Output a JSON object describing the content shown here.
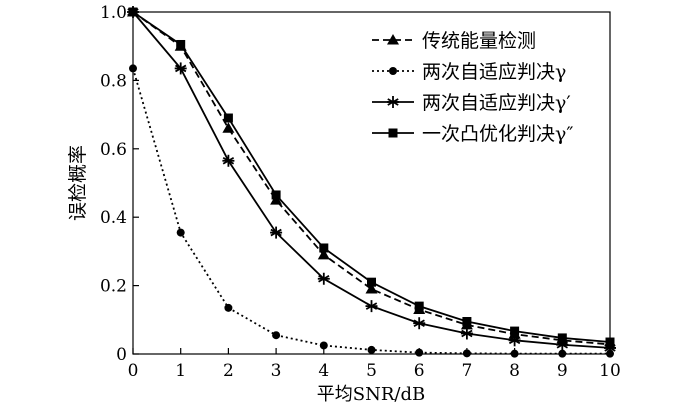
{
  "chart_data": {
    "type": "line",
    "xlabel": "平均SNR/dB",
    "ylabel": "误检概率",
    "xlim": [
      0,
      10
    ],
    "ylim": [
      0,
      1
    ],
    "xticks": [
      "0",
      "1",
      "2",
      "3",
      "4",
      "5",
      "6",
      "7",
      "8",
      "9",
      "10"
    ],
    "yticks": [
      "0",
      "0.2",
      "0.4",
      "0.6",
      "0.8",
      "1.0"
    ],
    "grid": false,
    "legend_position": "top-right",
    "x": [
      0,
      1,
      2,
      3,
      4,
      5,
      6,
      7,
      8,
      9,
      10
    ],
    "series": [
      {
        "name": "传统能量检测",
        "marker": "triangle",
        "line_style": "dashed",
        "values": [
          1.0,
          0.9,
          0.66,
          0.45,
          0.29,
          0.19,
          0.13,
          0.085,
          0.058,
          0.04,
          0.028
        ]
      },
      {
        "name": "两次自适应判决γ",
        "marker": "circle",
        "line_style": "dotted",
        "values": [
          0.835,
          0.355,
          0.135,
          0.055,
          0.025,
          0.012,
          0.004,
          0.002,
          0.001,
          0.001,
          0.001
        ]
      },
      {
        "name": "两次自适应判决γ′",
        "marker": "asterisk",
        "line_style": "solid",
        "values": [
          1.0,
          0.835,
          0.565,
          0.355,
          0.22,
          0.14,
          0.09,
          0.06,
          0.04,
          0.027,
          0.018
        ]
      },
      {
        "name": "一次凸优化判决γ″",
        "marker": "square",
        "line_style": "solid",
        "values": [
          1.0,
          0.905,
          0.69,
          0.465,
          0.31,
          0.21,
          0.14,
          0.095,
          0.067,
          0.047,
          0.035
        ]
      }
    ]
  }
}
